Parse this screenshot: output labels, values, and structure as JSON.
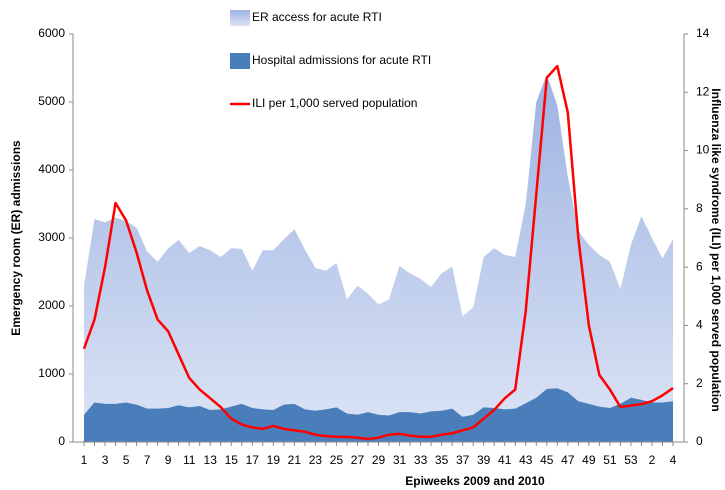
{
  "chart_data": {
    "type": "area",
    "categories": [
      "1",
      null,
      "3",
      null,
      "5",
      null,
      "7",
      null,
      "9",
      null,
      "11",
      null,
      "13",
      null,
      "15",
      null,
      "17",
      null,
      "19",
      null,
      "21",
      null,
      "23",
      null,
      "25",
      null,
      "27",
      null,
      "29",
      null,
      "31",
      null,
      "33",
      null,
      "35",
      null,
      "37",
      null,
      "39",
      null,
      "41",
      null,
      "43",
      null,
      "45",
      null,
      "47",
      null,
      "49",
      null,
      "51",
      null,
      "53",
      null,
      "2",
      null,
      "4"
    ],
    "x_label": "Epiweeks 2009 and 2010",
    "y_label": "Emergency room (ER) admissions",
    "y2_label": "Influenza like syndrome (ILI) per 1,000 served population",
    "ylim": [
      0,
      6000
    ],
    "yticks": [
      0,
      1000,
      2000,
      3000,
      4000,
      5000,
      6000
    ],
    "y2lim": [
      0,
      14
    ],
    "y2ticks": [
      0,
      2,
      4,
      6,
      8,
      10,
      12,
      14
    ],
    "legend": "top",
    "grid": false,
    "series": [
      {
        "name": "ER access for acute RTI",
        "type": "area",
        "color": "#9db3e2",
        "values": [
          2300,
          3280,
          3230,
          3300,
          3250,
          3150,
          2800,
          2650,
          2850,
          2970,
          2780,
          2880,
          2820,
          2720,
          2850,
          2840,
          2520,
          2820,
          2820,
          2980,
          3130,
          2830,
          2560,
          2520,
          2630,
          2100,
          2300,
          2180,
          2020,
          2100,
          2590,
          2480,
          2400,
          2280,
          2480,
          2580,
          1850,
          1980,
          2720,
          2850,
          2750,
          2720,
          3500,
          5000,
          5400,
          4950,
          3900,
          3100,
          2900,
          2750,
          2650,
          2250,
          2900,
          3320,
          3000,
          2700,
          2980
        ]
      },
      {
        "name": "Hospital admissions for acute RTI",
        "type": "area",
        "color": "#4a7ebb",
        "values": [
          400,
          580,
          560,
          560,
          580,
          550,
          490,
          490,
          500,
          540,
          510,
          530,
          470,
          480,
          520,
          560,
          500,
          480,
          470,
          550,
          560,
          480,
          460,
          480,
          510,
          420,
          400,
          440,
          400,
          390,
          440,
          440,
          420,
          450,
          460,
          490,
          370,
          400,
          510,
          500,
          480,
          490,
          570,
          650,
          780,
          790,
          730,
          600,
          560,
          520,
          500,
          560,
          650,
          620,
          580,
          580,
          600
        ]
      },
      {
        "name": "ILI per 1,000 served population",
        "type": "line",
        "axis": "y2",
        "color": "#ff0000",
        "values": [
          3.2,
          4.2,
          6.0,
          8.2,
          7.6,
          6.5,
          5.2,
          4.2,
          3.8,
          3.0,
          2.2,
          1.8,
          1.5,
          1.2,
          0.8,
          0.6,
          0.5,
          0.45,
          0.55,
          0.45,
          0.4,
          0.35,
          0.25,
          0.2,
          0.18,
          0.17,
          0.15,
          0.1,
          0.15,
          0.25,
          0.28,
          0.22,
          0.18,
          0.18,
          0.25,
          0.3,
          0.4,
          0.5,
          0.8,
          1.1,
          1.5,
          1.8,
          4.5,
          8.5,
          12.5,
          12.9,
          11.3,
          7.0,
          4.0,
          2.3,
          1.8,
          1.2,
          1.25,
          1.3,
          1.4,
          1.6,
          1.85
        ]
      }
    ]
  }
}
